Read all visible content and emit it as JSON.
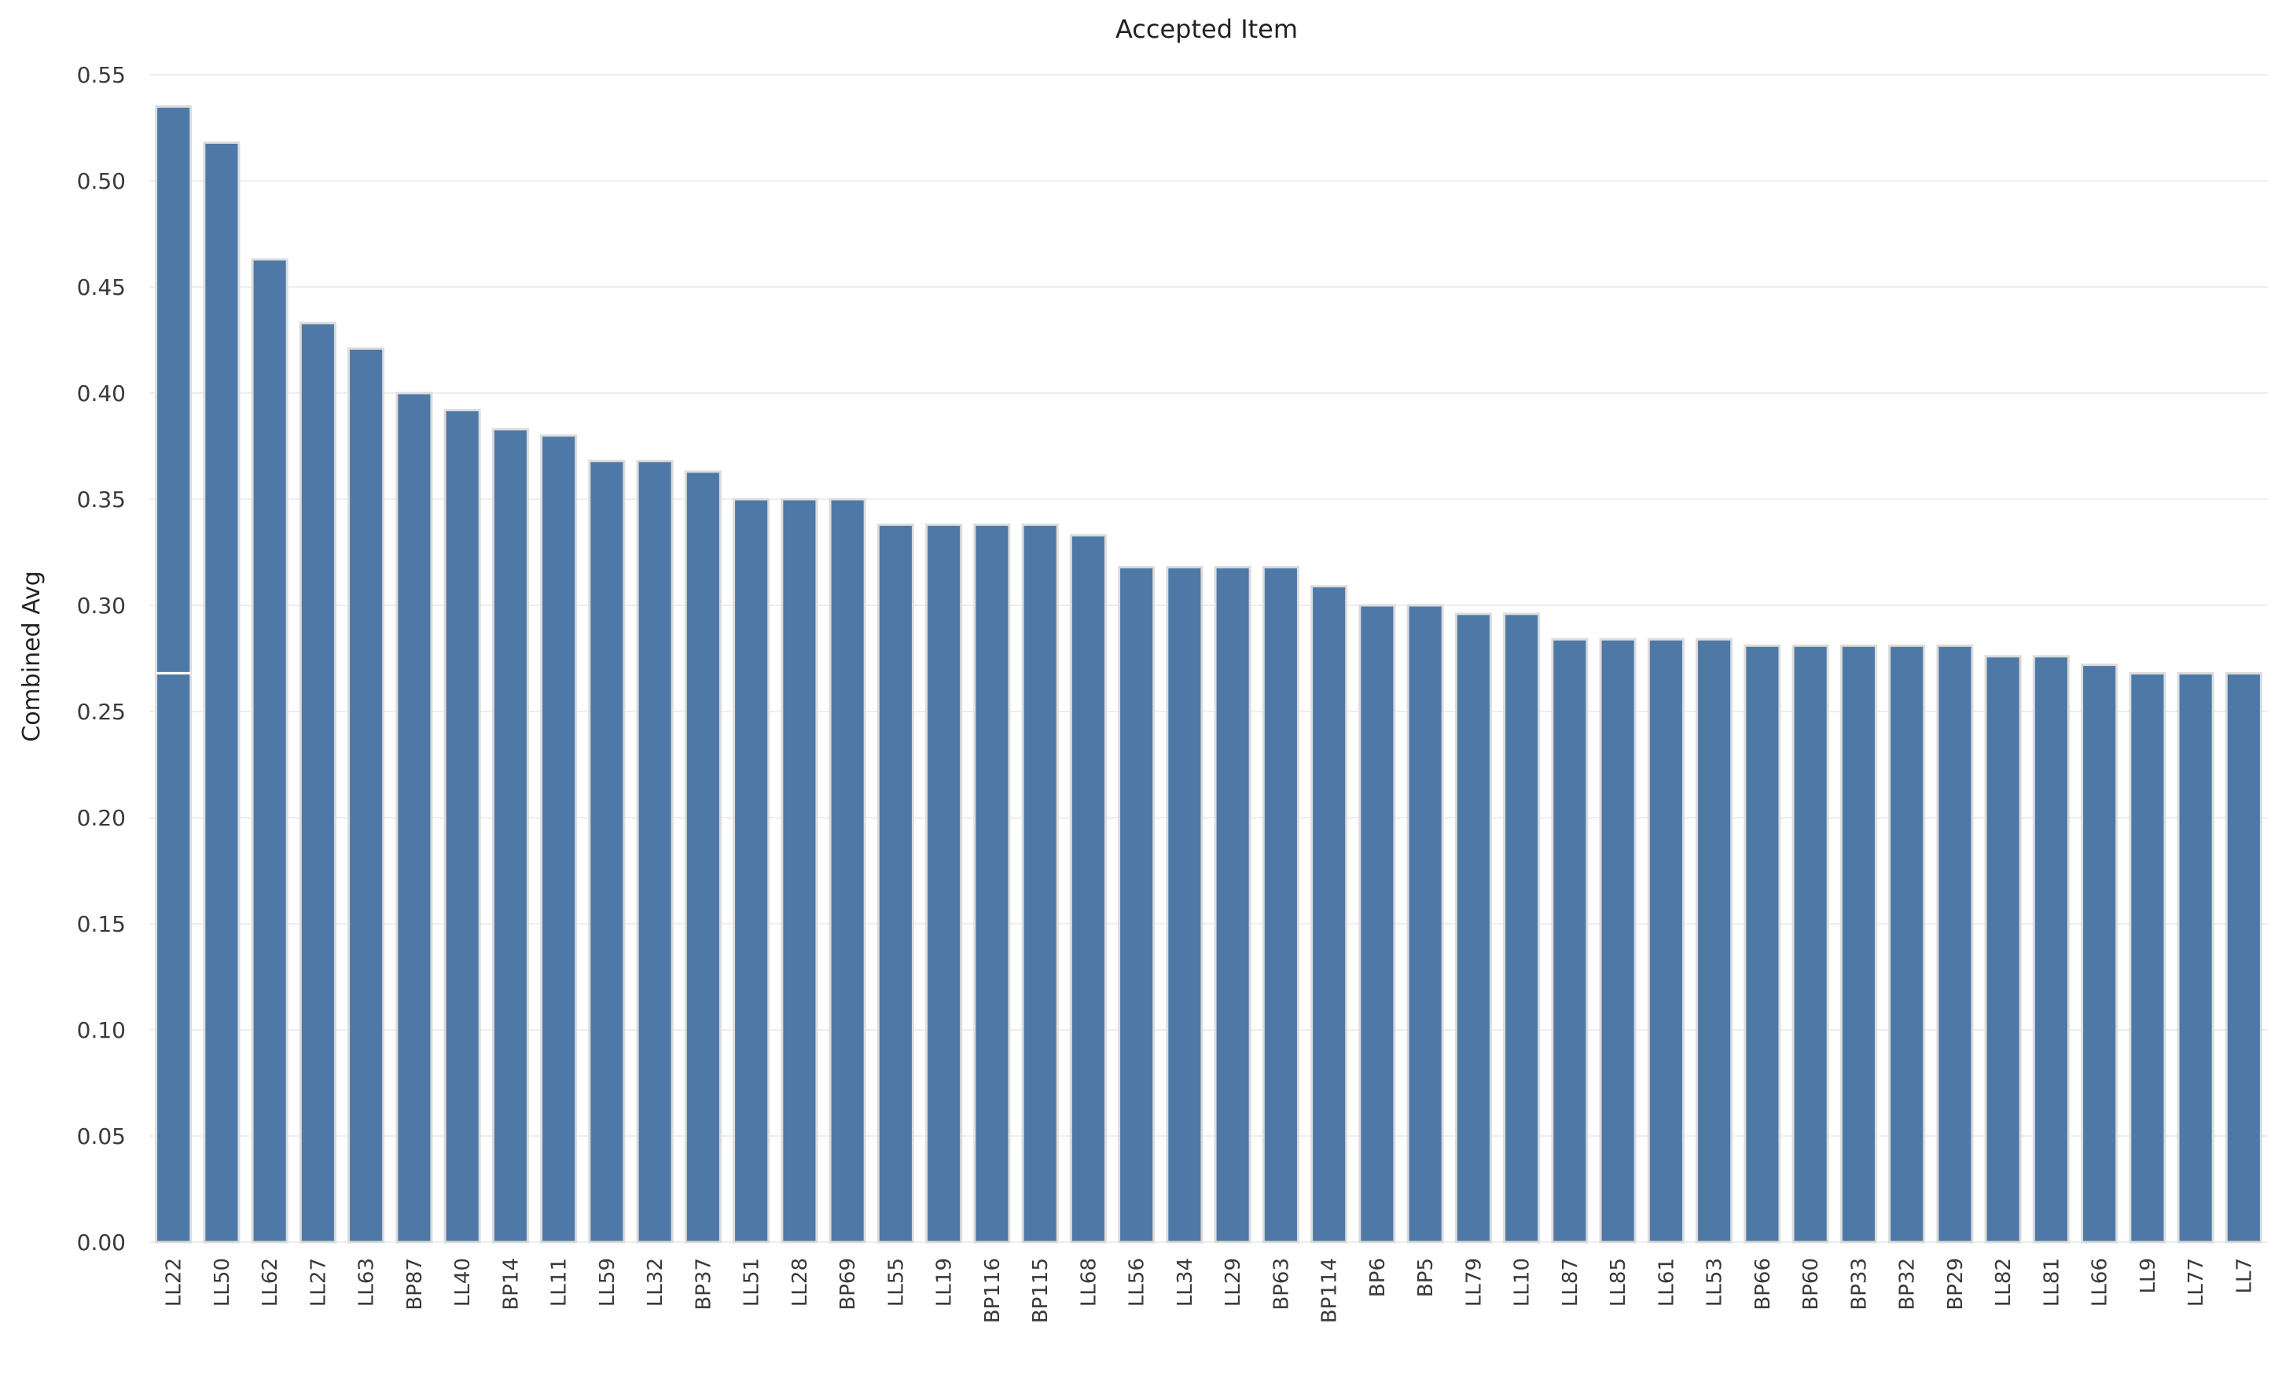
{
  "chart_data": {
    "type": "bar",
    "title": "Accepted Item",
    "xlabel": "",
    "ylabel": "Combined Avg",
    "ylim": [
      0,
      0.55
    ],
    "yticks": [
      "0.00",
      "0.05",
      "0.10",
      "0.15",
      "0.20",
      "0.25",
      "0.30",
      "0.35",
      "0.40",
      "0.45",
      "0.50",
      "0.55"
    ],
    "grid": true,
    "legend": "none",
    "bar_color": "#4e79a7",
    "categories": [
      "LL22",
      "LL50",
      "LL62",
      "LL27",
      "LL63",
      "BP87",
      "LL40",
      "BP14",
      "LL11",
      "LL59",
      "LL32",
      "BP37",
      "LL51",
      "LL28",
      "BP69",
      "LL55",
      "LL19",
      "BP116",
      "BP115",
      "LL68",
      "LL56",
      "LL34",
      "LL29",
      "BP63",
      "BP114",
      "BP6",
      "BP5",
      "LL79",
      "LL10",
      "LL87",
      "LL85",
      "LL61",
      "LL53",
      "BP66",
      "BP60",
      "BP33",
      "BP32",
      "BP29",
      "LL82",
      "LL81",
      "LL66",
      "LL9",
      "LL77",
      "LL7"
    ],
    "values": [
      0.535,
      0.518,
      0.463,
      0.433,
      0.421,
      0.4,
      0.392,
      0.383,
      0.38,
      0.368,
      0.368,
      0.363,
      0.35,
      0.35,
      0.35,
      0.338,
      0.338,
      0.338,
      0.338,
      0.333,
      0.318,
      0.318,
      0.318,
      0.318,
      0.309,
      0.3,
      0.3,
      0.296,
      0.296,
      0.284,
      0.284,
      0.284,
      0.284,
      0.281,
      0.281,
      0.281,
      0.281,
      0.281,
      0.276,
      0.276,
      0.272,
      0.268,
      0.268,
      0.268
    ],
    "reference_line": {
      "value": 0.268
    }
  }
}
